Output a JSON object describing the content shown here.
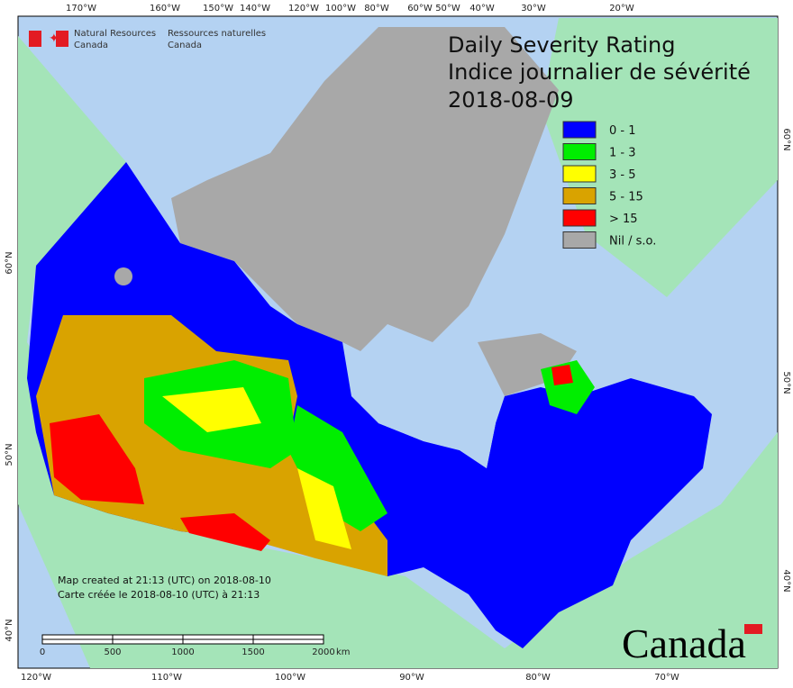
{
  "agency": {
    "en": [
      "Natural Resources",
      "Canada"
    ],
    "fr": [
      "Ressources naturelles",
      "Canada"
    ]
  },
  "title": [
    "Daily Severity Rating",
    "Indice journalier de sévérité"
  ],
  "date": "2018-08-09",
  "legend": [
    {
      "label": "0 - 1",
      "color": "#0000ff"
    },
    {
      "label": "1 - 3",
      "color": "#00ee00"
    },
    {
      "label": "3 - 5",
      "color": "#ffff00"
    },
    {
      "label": "5 - 15",
      "color": "#d9a300"
    },
    {
      "label": "> 15",
      "color": "#ff0000"
    },
    {
      "label": "Nil / s.o.",
      "color": "#a8a8a8"
    }
  ],
  "credits": [
    "Map created at 21:13 (UTC) on 2018-08-10",
    "Carte créée le 2018-08-10 (UTC) à 21:13"
  ],
  "scale_bar": {
    "labels": [
      "0",
      "500",
      "1000",
      "1500",
      "2000"
    ],
    "unit": "km"
  },
  "graticule": {
    "top": [
      "170°W",
      "160°W",
      "150°W",
      "140°W",
      "120°W",
      "100°W",
      "80°W",
      "60°W",
      "50°W",
      "40°W",
      "30°W",
      "20°W"
    ],
    "bottom": [
      "120°W",
      "110°W",
      "100°W",
      "90°W",
      "80°W",
      "70°W"
    ],
    "left": [
      "60°N",
      "50°N",
      "40°N"
    ],
    "right": [
      "60°N",
      "50°N",
      "40°N"
    ]
  },
  "wordmark": "Canada"
}
